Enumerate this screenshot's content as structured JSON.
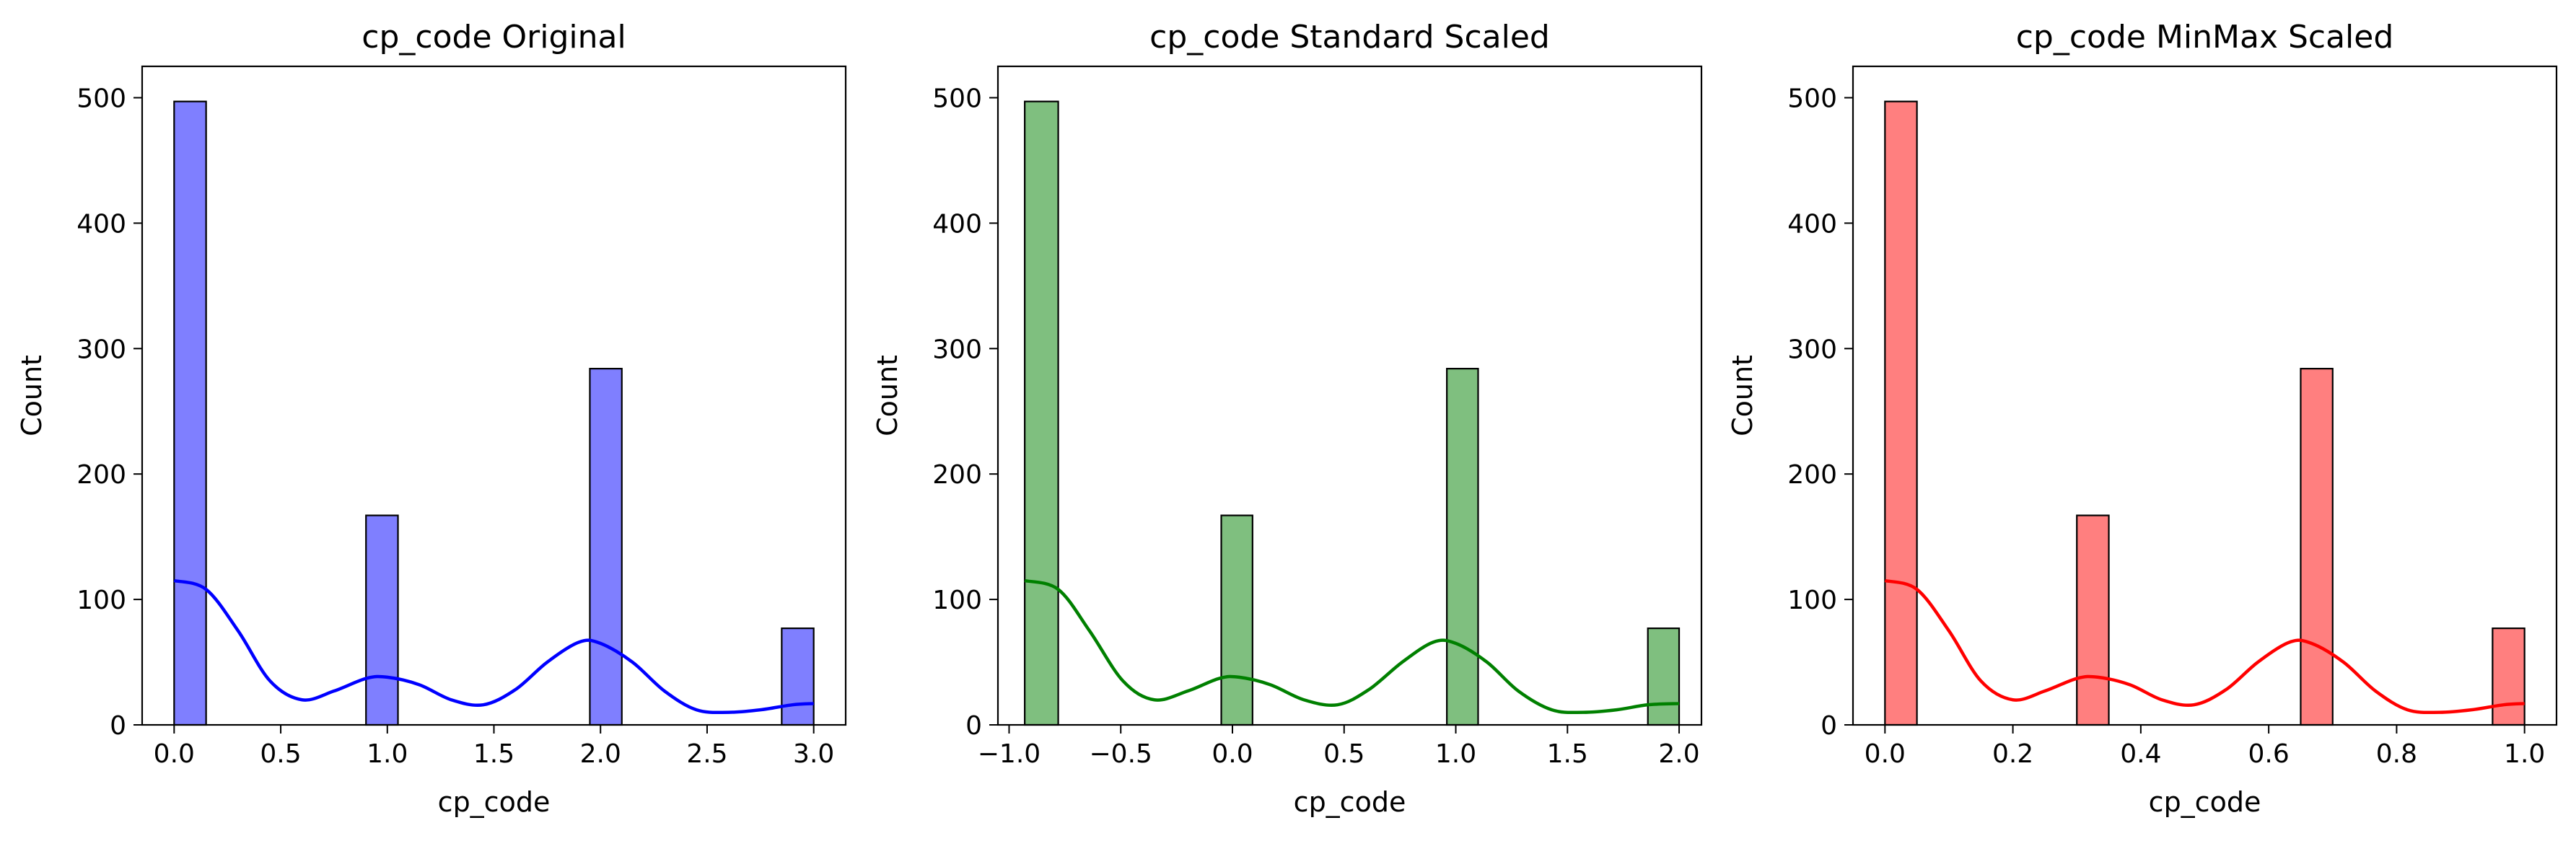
{
  "figure": {
    "background": "#ffffff"
  },
  "chart_data": [
    {
      "type": "bar",
      "title": "cp_code Original",
      "xlabel": "cp_code",
      "ylabel": "Count",
      "color": "#0000ff",
      "xlim": [
        -0.15,
        3.15
      ],
      "ylim": [
        0,
        525
      ],
      "xticks": [
        0.0,
        0.5,
        1.0,
        1.5,
        2.0,
        2.5,
        3.0
      ],
      "xtick_labels": [
        "0.0",
        "0.5",
        "1.0",
        "1.5",
        "2.0",
        "2.5",
        "3.0"
      ],
      "yticks": [
        0,
        100,
        200,
        300,
        400,
        500
      ],
      "ytick_labels": [
        "0",
        "100",
        "200",
        "300",
        "400",
        "500"
      ],
      "bins": [
        {
          "x0": 0.0,
          "x1": 0.15,
          "count": 497
        },
        {
          "x0": 0.9,
          "x1": 1.05,
          "count": 167
        },
        {
          "x0": 1.95,
          "x1": 2.1,
          "count": 284
        },
        {
          "x0": 2.85,
          "x1": 3.0,
          "count": 77
        }
      ],
      "kde": {
        "x": [
          0.0,
          0.15,
          0.3,
          0.45,
          0.6,
          0.75,
          0.9,
          1.0,
          1.15,
          1.3,
          1.45,
          1.6,
          1.75,
          1.9,
          2.0,
          2.15,
          2.3,
          2.45,
          2.6,
          2.75,
          2.9,
          3.0
        ],
        "y": [
          115,
          108,
          75,
          35,
          20,
          27,
          37,
          38,
          32,
          20,
          16,
          28,
          50,
          66,
          65,
          50,
          27,
          12,
          10,
          12,
          16,
          17
        ]
      }
    },
    {
      "type": "bar",
      "title": "cp_code Standard Scaled",
      "xlabel": "cp_code",
      "ylabel": "Count",
      "color": "#008000",
      "xlim": [
        -1.05,
        2.1
      ],
      "ylim": [
        0,
        525
      ],
      "xticks": [
        -1.0,
        -0.5,
        0.0,
        0.5,
        1.0,
        1.5,
        2.0
      ],
      "xtick_labels": [
        "−1.0",
        "−0.5",
        "0.0",
        "0.5",
        "1.0",
        "1.5",
        "2.0"
      ],
      "yticks": [
        0,
        100,
        200,
        300,
        400,
        500
      ],
      "ytick_labels": [
        "0",
        "100",
        "200",
        "300",
        "400",
        "500"
      ],
      "bins": [
        {
          "x0": -0.93,
          "x1": -0.78,
          "count": 497
        },
        {
          "x0": -0.05,
          "x1": 0.09,
          "count": 167
        },
        {
          "x0": 0.96,
          "x1": 1.1,
          "count": 284
        },
        {
          "x0": 1.86,
          "x1": 2.0,
          "count": 77
        }
      ],
      "kde": {
        "x": [
          -0.93,
          -0.78,
          -0.64,
          -0.49,
          -0.35,
          -0.2,
          -0.06,
          0.03,
          0.17,
          0.32,
          0.47,
          0.61,
          0.76,
          0.9,
          1.0,
          1.14,
          1.28,
          1.43,
          1.57,
          1.72,
          1.86,
          2.0
        ],
        "y": [
          115,
          108,
          75,
          35,
          20,
          27,
          37,
          38,
          32,
          20,
          16,
          28,
          50,
          66,
          65,
          50,
          27,
          12,
          10,
          12,
          16,
          17
        ]
      }
    },
    {
      "type": "bar",
      "title": "cp_code MinMax Scaled",
      "xlabel": "cp_code",
      "ylabel": "Count",
      "color": "#ff0000",
      "xlim": [
        -0.05,
        1.05
      ],
      "ylim": [
        0,
        525
      ],
      "xticks": [
        0.0,
        0.2,
        0.4,
        0.6,
        0.8,
        1.0
      ],
      "xtick_labels": [
        "0.0",
        "0.2",
        "0.4",
        "0.6",
        "0.8",
        "1.0"
      ],
      "yticks": [
        0,
        100,
        200,
        300,
        400,
        500
      ],
      "ytick_labels": [
        "0",
        "100",
        "200",
        "300",
        "400",
        "500"
      ],
      "bins": [
        {
          "x0": 0.0,
          "x1": 0.05,
          "count": 497
        },
        {
          "x0": 0.3,
          "x1": 0.35,
          "count": 167
        },
        {
          "x0": 0.65,
          "x1": 0.7,
          "count": 284
        },
        {
          "x0": 0.95,
          "x1": 1.0,
          "count": 77
        }
      ],
      "kde": {
        "x": [
          0.0,
          0.05,
          0.1,
          0.15,
          0.2,
          0.25,
          0.3,
          0.333,
          0.383,
          0.433,
          0.483,
          0.533,
          0.583,
          0.633,
          0.667,
          0.717,
          0.767,
          0.817,
          0.867,
          0.917,
          0.967,
          1.0
        ],
        "y": [
          115,
          108,
          75,
          35,
          20,
          27,
          37,
          38,
          32,
          20,
          16,
          28,
          50,
          66,
          65,
          50,
          27,
          12,
          10,
          12,
          16,
          17
        ]
      }
    }
  ]
}
